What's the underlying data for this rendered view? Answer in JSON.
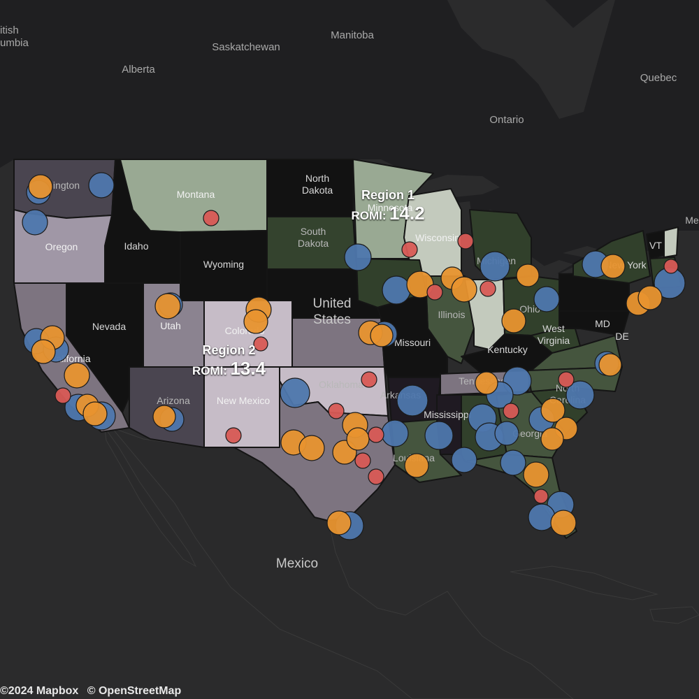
{
  "places": {
    "british_columbia": "itish\numbia",
    "alberta": "Alberta",
    "saskatchewan": "Saskatchewan",
    "manitoba": "Manitoba",
    "ontario": "Ontario",
    "quebec": "Quebec",
    "united_states": "United\nStates",
    "mexico": "Mexico"
  },
  "states": {
    "washington": "ington",
    "oregon": "Oregon",
    "idaho": "Idaho",
    "montana": "Montana",
    "wyoming": "Wyoming",
    "north_dakota": "North\nDakota",
    "south_dakota": "South\nDakota",
    "minnesota": "Minnesota",
    "wisconsin": "Wisconsin",
    "michigan": "Michigan",
    "nevada": "Nevada",
    "utah": "Utah",
    "colorado": "Colorado",
    "california": "California",
    "arizona": "Arizona",
    "new_mexico": "New Mexico",
    "oklahoma": "Oklahoma",
    "missouri": "Missouri",
    "illinois": "Illinois",
    "ohio": "Ohio",
    "kentucky": "Kentucky",
    "west_virginia": "West\nVirginia",
    "new_york": "New York",
    "vermont": "VT",
    "maryland": "MD",
    "delaware": "DE",
    "arkansas": "Arkansas",
    "tennessee": "Tennessee",
    "mississippi": "Mississippi",
    "louisiana": "Louisiana",
    "georgia": "Georgia",
    "north_carolina": "North\nCarolina",
    "maine": "Me"
  },
  "regions": [
    {
      "name": "Region 1",
      "romi_label": "ROMI:",
      "romi_value": "14.2"
    },
    {
      "name": "Region 2",
      "romi_label": "ROMI:",
      "romi_value": "13.4"
    }
  ],
  "colors": {
    "background": "#2b2b2c",
    "land_canada": "#1f1f20",
    "land_mexico": "#2a2a2a",
    "marker_blue": "#4e77ad",
    "marker_orange": "#e8942f",
    "marker_red": "#d85a55"
  },
  "attribution": {
    "mapbox": "©2024 Mapbox",
    "osm": "© OpenStreetMap"
  }
}
